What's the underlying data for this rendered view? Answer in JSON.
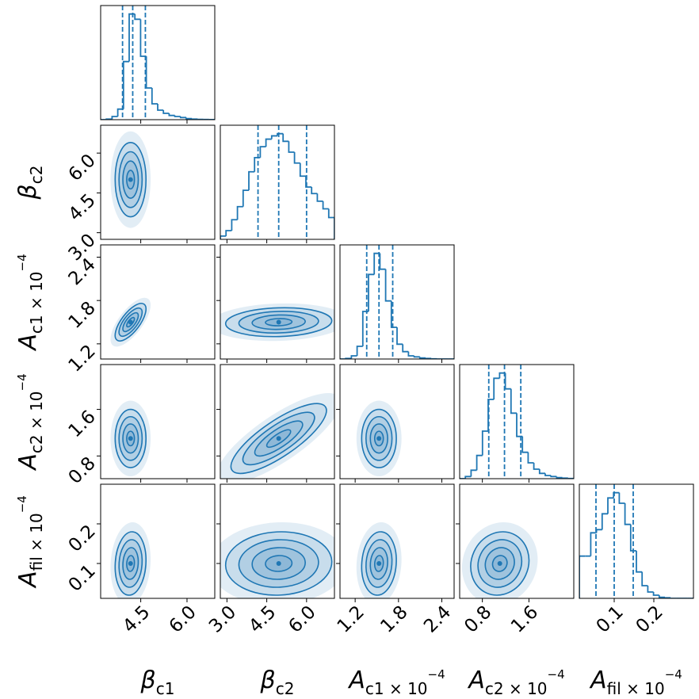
{
  "chart_data": {
    "type": "corner",
    "color": "#1f77b4",
    "params": [
      {
        "symbol": "β",
        "sub": "c1",
        "lim": [
          3.2,
          6.9
        ],
        "ticks": [
          4.5,
          {
            "value": 6,
            "label": "6.0"
          }
        ],
        "hist": {
          "bins": [
            3.2,
            3.385,
            3.57,
            3.755,
            3.94,
            4.125,
            4.31,
            4.495,
            4.68,
            4.865,
            5.05,
            5.235,
            5.42,
            5.605,
            5.79,
            5.975,
            6.16,
            6.345,
            6.53,
            6.715,
            6.9
          ],
          "counts": [
            0,
            0.5,
            3,
            10,
            55,
            100,
            95,
            60,
            30,
            15,
            9,
            6,
            4,
            3,
            2,
            1,
            0.5,
            0.3,
            0.2,
            0.1
          ]
        },
        "quantiles": [
          3.91,
          4.24,
          4.65
        ]
      },
      {
        "symbol": "β",
        "sub": "c2",
        "lim": [
          2.75,
          7.05
        ],
        "ticks": [
          {
            "value": 3,
            "label": "3.0"
          },
          4.5,
          {
            "value": 6,
            "label": "6.0"
          }
        ],
        "hist": {
          "bins": [
            2.75,
            2.965,
            3.18,
            3.395,
            3.61,
            3.825,
            4.04,
            4.255,
            4.47,
            4.685,
            4.9,
            5.115,
            5.33,
            5.545,
            5.76,
            5.975,
            6.19,
            6.405,
            6.62,
            6.835,
            7.05
          ],
          "counts": [
            3,
            8,
            18,
            30,
            45,
            62,
            75,
            85,
            92,
            95,
            97,
            90,
            80,
            70,
            58,
            48,
            42,
            35,
            28,
            20
          ]
        },
        "quantiles": [
          4.17,
          4.95,
          6.0
        ]
      },
      {
        "symbol": "A",
        "sub": "c1 × 10",
        "sup": "−4",
        "lim": [
          0.99,
          2.57
        ],
        "ticks": [
          1.2,
          1.8,
          2.4
        ],
        "hist": {
          "bins": [
            0.99,
            1.069,
            1.148,
            1.227,
            1.306,
            1.385,
            1.464,
            1.543,
            1.622,
            1.701,
            1.78,
            1.859,
            1.938,
            2.017,
            2.096,
            2.175,
            2.254,
            2.333,
            2.412,
            2.491,
            2.57
          ],
          "counts": [
            0,
            0.5,
            3,
            12,
            45,
            80,
            100,
            85,
            55,
            30,
            14,
            7,
            3,
            2,
            1,
            0.5,
            0.2,
            0,
            0,
            0
          ]
        },
        "quantiles": [
          1.36,
          1.53,
          1.72
        ]
      },
      {
        "symbol": "A",
        "sub": "c2 × 10",
        "sup": "−4",
        "lim": [
          0.41,
          2.37
        ],
        "ticks": [
          0.8,
          1.6
        ],
        "hist": {
          "bins": [
            0.41,
            0.508,
            0.606,
            0.704,
            0.802,
            0.9,
            0.998,
            1.096,
            1.194,
            1.292,
            1.39,
            1.488,
            1.586,
            1.684,
            1.782,
            1.88,
            1.978,
            2.076,
            2.174,
            2.272,
            2.37
          ],
          "counts": [
            0,
            2,
            8,
            22,
            45,
            75,
            95,
            100,
            85,
            62,
            40,
            25,
            15,
            9,
            5,
            3,
            2,
            1,
            0.5,
            0.2
          ]
        },
        "quantiles": [
          0.91,
          1.18,
          1.46
        ]
      },
      {
        "symbol": "A",
        "sub": "fil × 10",
        "sup": "−4",
        "lim": [
          0.012,
          0.3
        ],
        "ticks": [
          0.1,
          0.2
        ],
        "hist": {
          "bins": [
            0.012,
            0.0264,
            0.0408,
            0.0552,
            0.0696,
            0.084,
            0.0984,
            0.1128,
            0.1272,
            0.1416,
            0.156,
            0.1704,
            0.1848,
            0.1992,
            0.2136,
            0.228,
            0.2424,
            0.2568,
            0.2712,
            0.2856,
            0.3
          ],
          "counts": [
            40,
            40,
            62,
            65,
            80,
            95,
            100,
            90,
            70,
            45,
            25,
            12,
            6,
            3,
            1,
            0.5,
            0,
            0,
            0,
            0
          ]
        },
        "quantiles": [
          0.054,
          0.1,
          0.148
        ]
      }
    ],
    "pairs": [
      {
        "x": 0,
        "y": 1,
        "mean": [
          4.17,
          5.0
        ],
        "std": [
          0.25,
          0.7
        ],
        "corr": 0.0
      },
      {
        "x": 0,
        "y": 2,
        "mean": [
          4.17,
          1.5
        ],
        "std": [
          0.25,
          0.13
        ],
        "corr": 0.7
      },
      {
        "x": 1,
        "y": 2,
        "mean": [
          4.95,
          1.5
        ],
        "std": [
          1.0,
          0.1
        ],
        "corr": 0.1
      },
      {
        "x": 0,
        "y": 3,
        "mean": [
          4.17,
          1.1
        ],
        "std": [
          0.25,
          0.25
        ],
        "corr": 0.0
      },
      {
        "x": 1,
        "y": 3,
        "mean": [
          4.95,
          1.1
        ],
        "std": [
          0.9,
          0.3
        ],
        "corr": 0.8
      },
      {
        "x": 2,
        "y": 3,
        "mean": [
          1.53,
          1.1
        ],
        "std": [
          0.12,
          0.25
        ],
        "corr": 0.0
      },
      {
        "x": 0,
        "y": 4,
        "mean": [
          4.17,
          0.1
        ],
        "std": [
          0.25,
          0.04
        ],
        "corr": 0.1
      },
      {
        "x": 1,
        "y": 4,
        "mean": [
          4.95,
          0.1
        ],
        "std": [
          1.0,
          0.04
        ],
        "corr": 0.05
      },
      {
        "x": 2,
        "y": 4,
        "mean": [
          1.53,
          0.1
        ],
        "std": [
          0.12,
          0.04
        ],
        "corr": 0.1
      },
      {
        "x": 3,
        "y": 4,
        "mean": [
          1.1,
          0.1
        ],
        "std": [
          0.25,
          0.04
        ],
        "corr": 0.1
      }
    ]
  }
}
